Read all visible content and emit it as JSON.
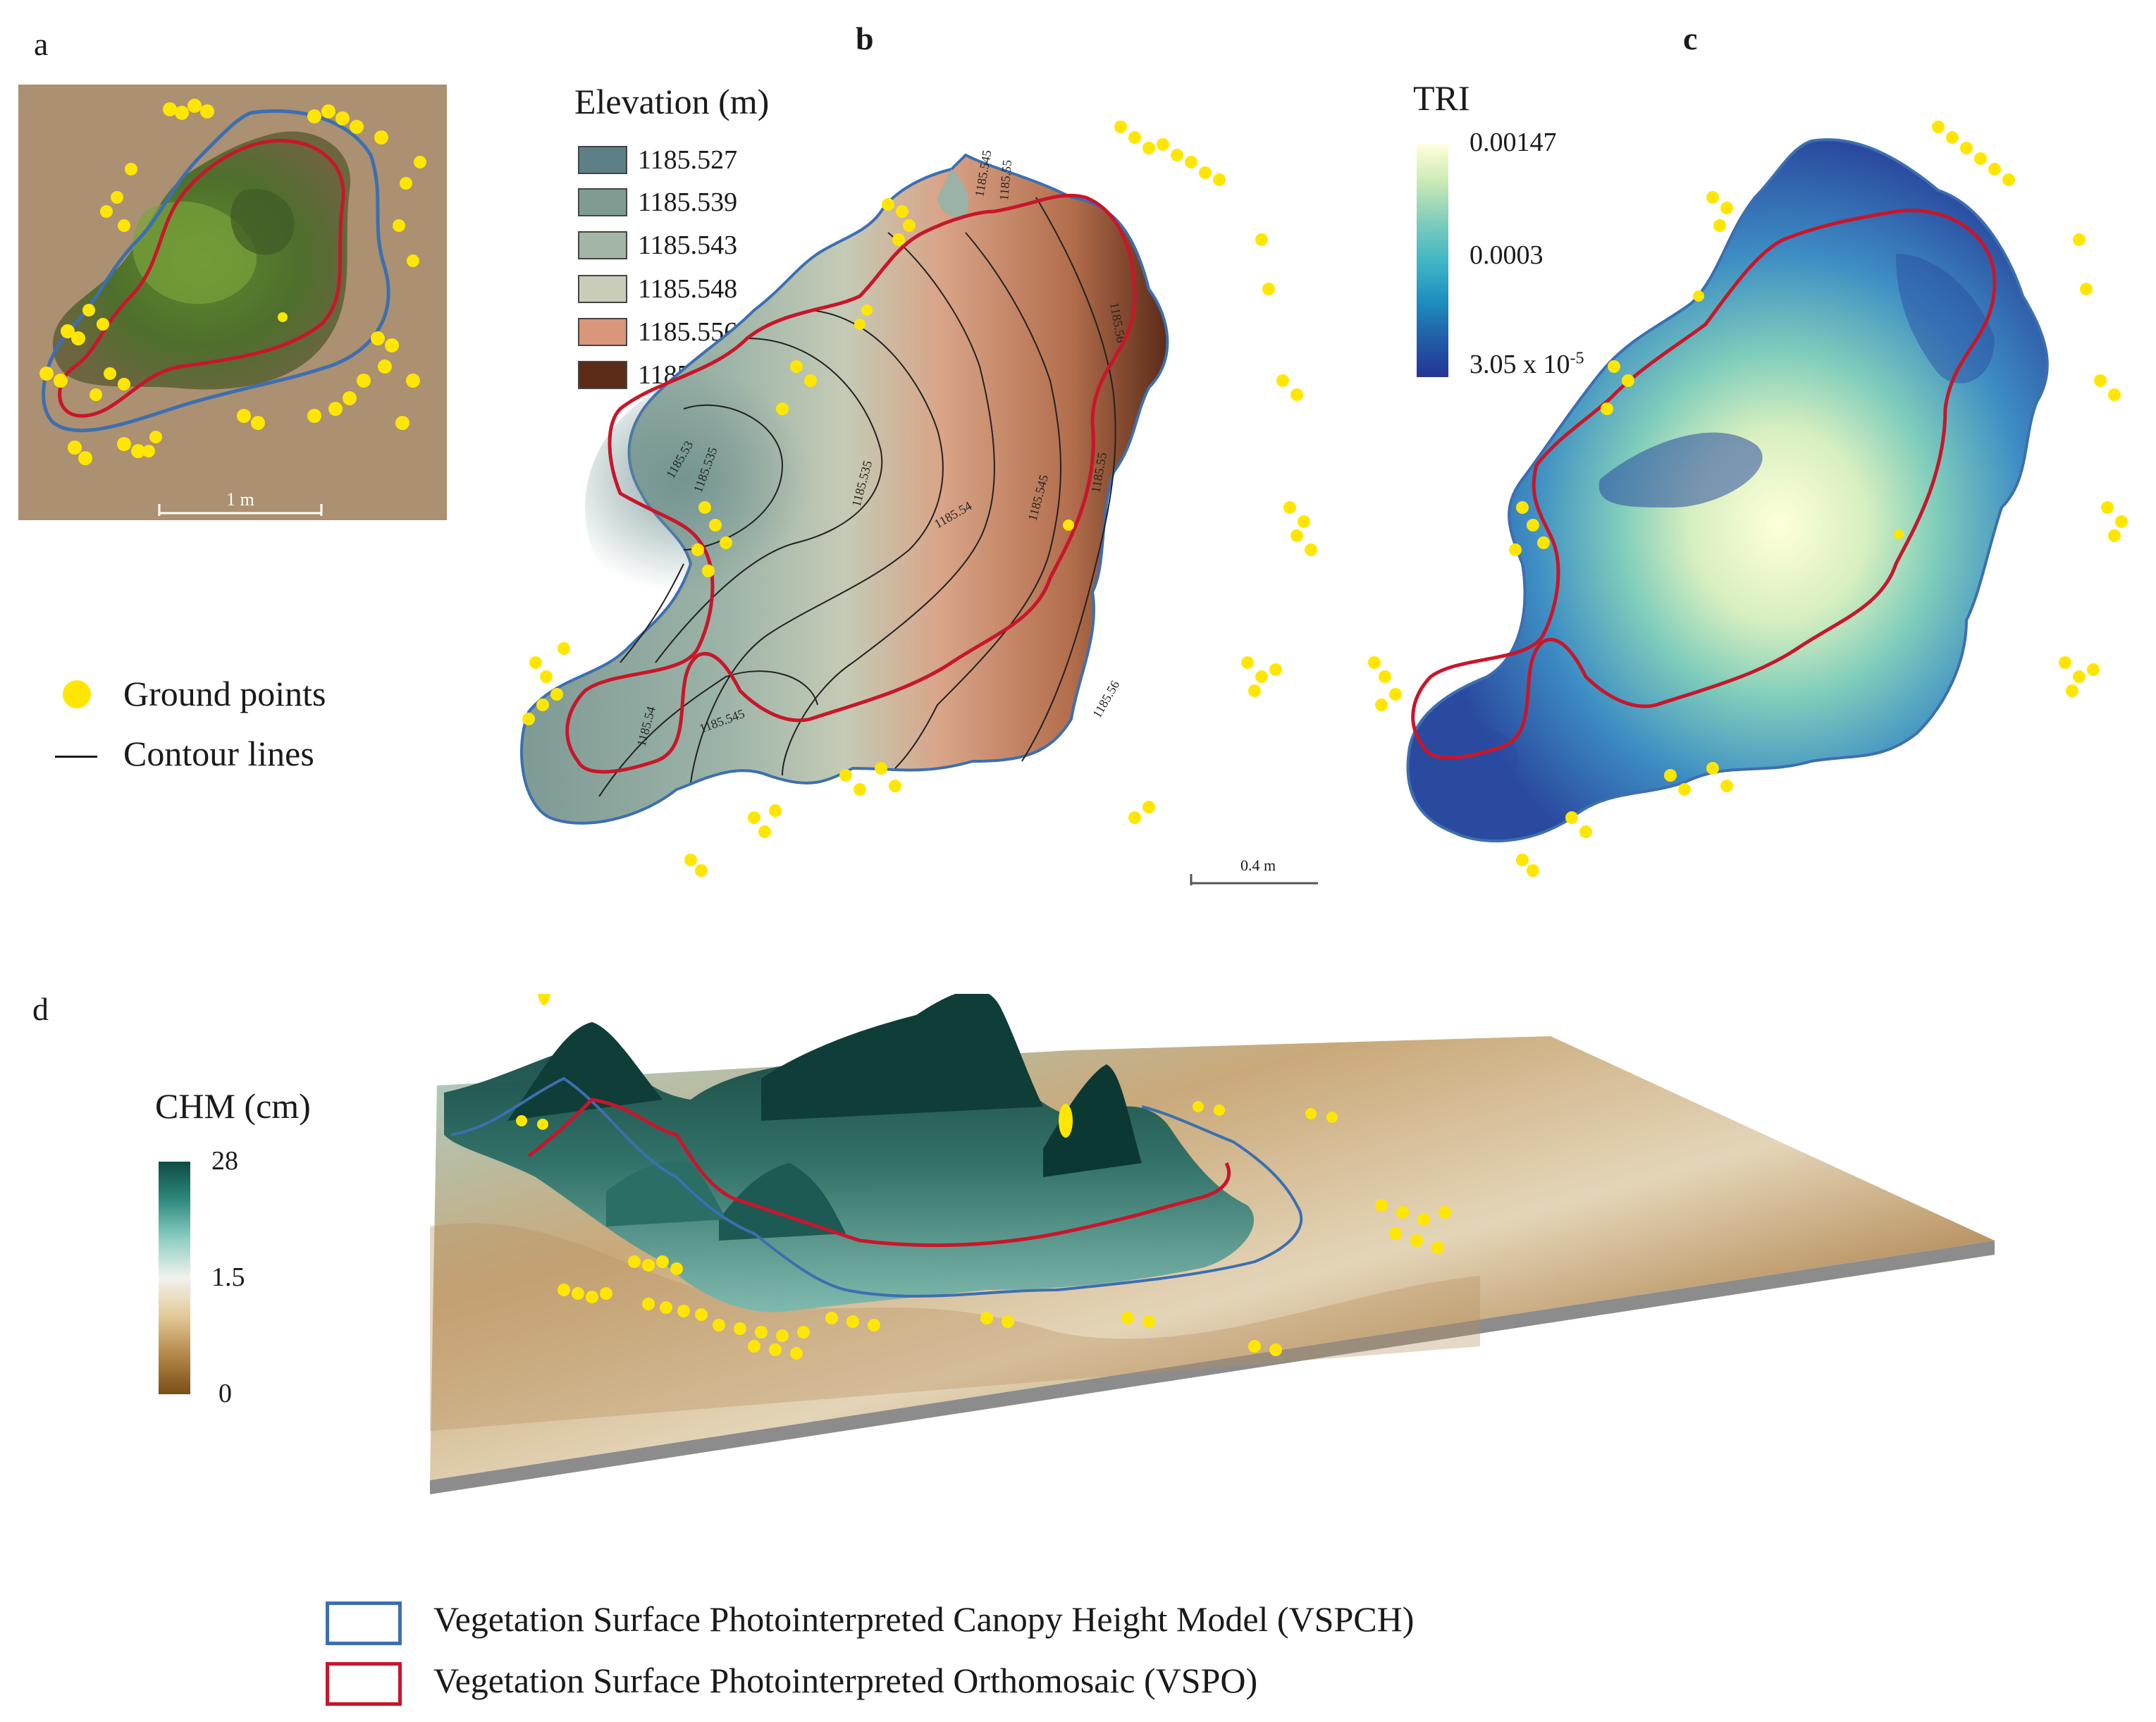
{
  "panels": {
    "a": {
      "letter": "a",
      "scalebar_label": "1 m"
    },
    "b": {
      "letter": "b",
      "scalebar_label": "0.4 m"
    },
    "c": {
      "letter": "c"
    },
    "d": {
      "letter": "d"
    }
  },
  "legend_ab": {
    "ground_points": "Ground points",
    "contour_lines": "Contour lines",
    "colors": {
      "ground_points": "#ffe600"
    }
  },
  "elevation_legend": {
    "title": "Elevation (m)",
    "classes": [
      {
        "label": "1185.527",
        "color": "#5d7f86"
      },
      {
        "label": "1185.539",
        "color": "#7f9c93"
      },
      {
        "label": "1185.543",
        "color": "#a3b5a4"
      },
      {
        "label": "1185.548",
        "color": "#c9cdb8"
      },
      {
        "label": "1185.556",
        "color": "#d9967a"
      },
      {
        "label": "1185.565",
        "color": "#5b2b18"
      }
    ]
  },
  "contour_labels": [
    "1185.545",
    "1185.55",
    "1185.56",
    "1185.535",
    "1185.54",
    "1185.545",
    "1185.55",
    "1185.56",
    "1185.545",
    "1185.54",
    "1185.535",
    "1185.53"
  ],
  "tri_legend": {
    "title": "TRI",
    "max": "0.00147",
    "mid": "0.0003",
    "min": "3.05 x 10",
    "min_exp": "-5",
    "colors": [
      "#ffffd9",
      "#7fcdbb",
      "#1d91c0",
      "#253494"
    ]
  },
  "chm_legend": {
    "title": "CHM (cm)",
    "max": "28",
    "mid": "1.5",
    "min": "0",
    "colors": [
      "#0d4b44",
      "#4fa89a",
      "#f2f2ee",
      "#d2b07a",
      "#7a4f16"
    ]
  },
  "bottom_legend": {
    "vspch": "Vegetation Surface Photointerpreted Canopy Height Model (VSPCH)",
    "vspo": "Vegetation Surface Photointerpreted Orthomosaic (VSPO)",
    "colors": {
      "vspch": "#3c6fb0",
      "vspo": "#c8162a"
    }
  }
}
